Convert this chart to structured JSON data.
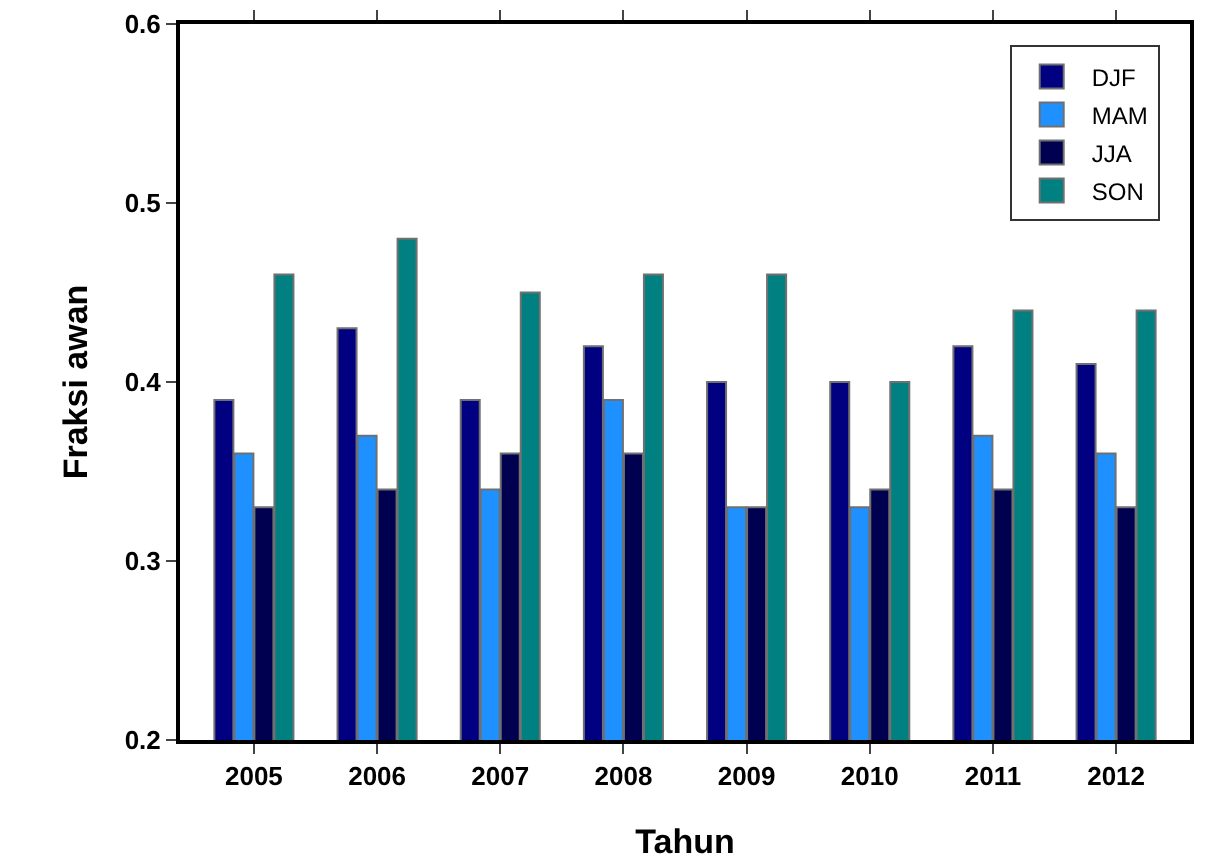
{
  "chart_data": {
    "type": "bar",
    "xlabel": "Tahun",
    "ylabel": "Fraksi awan",
    "categories": [
      "2005",
      "2006",
      "2007",
      "2008",
      "2009",
      "2010",
      "2011",
      "2012"
    ],
    "series": [
      {
        "name": "DJF",
        "color": "#000080",
        "values": [
          0.39,
          0.43,
          0.39,
          0.42,
          0.4,
          0.4,
          0.42,
          0.41
        ]
      },
      {
        "name": "MAM",
        "color": "#1e90ff",
        "values": [
          0.36,
          0.37,
          0.34,
          0.39,
          0.33,
          0.33,
          0.37,
          0.36
        ]
      },
      {
        "name": "JJA",
        "color": "#000050",
        "values": [
          0.33,
          0.34,
          0.36,
          0.36,
          0.33,
          0.34,
          0.34,
          0.33
        ]
      },
      {
        "name": "SON",
        "color": "#008080",
        "values": [
          0.46,
          0.48,
          0.45,
          0.46,
          0.46,
          0.4,
          0.44,
          0.44
        ]
      }
    ],
    "ylim": [
      0.2,
      0.6
    ],
    "yticks": [
      0.2,
      0.3,
      0.4,
      0.5,
      0.6
    ],
    "grid": false,
    "legend": "top right"
  }
}
